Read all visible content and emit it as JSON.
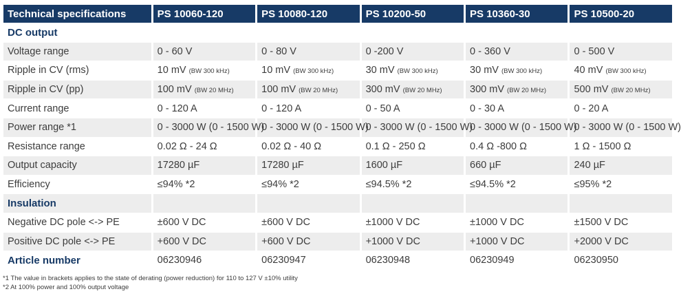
{
  "header": [
    "Technical specifications",
    "PS 10060-120",
    "PS 10080-120",
    "PS 10200-50",
    "PS 10360-30",
    "PS 10500-20"
  ],
  "sections": {
    "dc_output": "DC output",
    "insulation": "Insulation",
    "article_number": "Article number"
  },
  "rows": {
    "voltage_range": {
      "label": "Voltage range",
      "values": [
        "0 - 60 V",
        "0 - 80 V",
        "0 -200 V",
        "0 - 360 V",
        "0 - 500 V"
      ]
    },
    "ripple_rms": {
      "label": "Ripple in CV (rms)",
      "values": [
        "10 mV",
        "10 mV",
        "30 mV",
        "30 mV",
        "40 mV"
      ],
      "notes": [
        "(BW 300 kHz)",
        "(BW 300 kHz)",
        "(BW 300 kHz)",
        "(BW 300 kHz)",
        "(BW 300 kHz)"
      ]
    },
    "ripple_pp": {
      "label": "Ripple in CV (pp)",
      "values": [
        "100 mV",
        "100 mV",
        "300 mV",
        "300 mV",
        "500 mV"
      ],
      "notes": [
        "(BW 20 MHz)",
        "(BW 20 MHz)",
        "(BW 20 MHz)",
        "(BW 20 MHz)",
        "(BW 20 MHz)"
      ]
    },
    "current_range": {
      "label": "Current range",
      "values": [
        "0 - 120 A",
        "0 - 120 A",
        "0 - 50 A",
        "0 - 30 A",
        "0 - 20 A"
      ]
    },
    "power_range": {
      "label": "Power range *1",
      "values": [
        "0 - 3000 W (0 - 1500 W)",
        "0 - 3000 W (0 - 1500 W)",
        "0 - 3000 W (0 - 1500 W)",
        "0 - 3000 W (0 - 1500 W)",
        "0 - 3000 W (0 - 1500 W)"
      ]
    },
    "resistance_range": {
      "label": "Resistance range",
      "values": [
        "0.02 Ω - 24 Ω",
        "0.02 Ω - 40 Ω",
        "0.1 Ω - 250 Ω",
        "0.4 Ω -800 Ω",
        "1 Ω - 1500 Ω"
      ]
    },
    "output_capacity": {
      "label": "Output capacity",
      "values": [
        "17280 µF",
        "17280 µF",
        "1600 µF",
        "660 µF",
        "240 µF"
      ]
    },
    "efficiency": {
      "label": "Efficiency",
      "values": [
        "≤94% *2",
        "≤94% *2",
        "≤94.5% *2",
        "≤94.5% *2",
        "≤95% *2"
      ]
    },
    "negative_pole": {
      "label": "Negative DC pole <-> PE",
      "values": [
        "±600 V DC",
        "±600 V DC",
        "±1000 V DC",
        "±1000 V DC",
        "±1500 V DC"
      ]
    },
    "positive_pole": {
      "label": "Positive DC pole <-> PE",
      "values": [
        "+600 V DC",
        "+600 V DC",
        "+1000 V DC",
        "+1000 V DC",
        "+2000 V DC"
      ]
    },
    "article_numbers": {
      "values": [
        "06230946",
        "06230947",
        "06230948",
        "06230949",
        "06230950"
      ]
    }
  },
  "footnotes": [
    "*1 The value in brackets applies to the state of derating (power reduction) for 110 to 127 V ±10% utility",
    "*2 At 100% power and 100% output voltage"
  ],
  "colors": {
    "header_bg": "#173a66",
    "header_text": "#ffffff",
    "section_text": "#173a66",
    "alt_row_bg": "#ededed",
    "body_text": "#3c3c3c"
  }
}
